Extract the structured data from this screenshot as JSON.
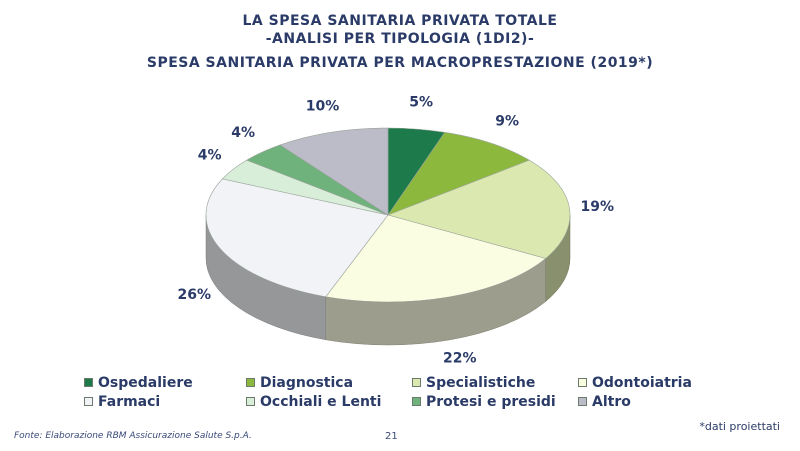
{
  "header": {
    "title_line1": "LA SPESA SANITARIA PRIVATA TOTALE",
    "title_line2": "-ANALISI PER TIPOLOGIA (1DI2)-",
    "subtitle": "SPESA SANITARIA PRIVATA PER MACROPRESTAZIONE (2019*)"
  },
  "chart_data": {
    "type": "pie",
    "title": "SPESA SANITARIA PRIVATA PER MACROPRESTAZIONE (2019*)",
    "legend_position": "bottom",
    "slices": [
      {
        "name": "Ospedaliere",
        "value": 5,
        "label": "5%",
        "color": "#1d7a4a"
      },
      {
        "name": "Diagnostica",
        "value": 9,
        "label": "9%",
        "color": "#8db83e"
      },
      {
        "name": "Specialistiche",
        "value": 19,
        "label": "19%",
        "color": "#dbe8b0"
      },
      {
        "name": "Odontoiatria",
        "value": 22,
        "label": "22%",
        "color": "#fbfde2"
      },
      {
        "name": "Farmaci",
        "value": 26,
        "label": "26%",
        "color": "#f1f3f7"
      },
      {
        "name": "Occhiali e Lenti",
        "value": 4,
        "label": "4%",
        "color": "#d8eed8"
      },
      {
        "name": "Protesi e presidi",
        "value": 4,
        "label": "4%",
        "color": "#6fb27c"
      },
      {
        "name": "Altro",
        "value": 10,
        "label": "10%",
        "color": "#bcbcc8"
      }
    ]
  },
  "footer": {
    "source": "Fonte: Elaborazione RBM Assicurazione Salute S.p.A.",
    "page_number": "21",
    "note": "*dati proiettati"
  }
}
